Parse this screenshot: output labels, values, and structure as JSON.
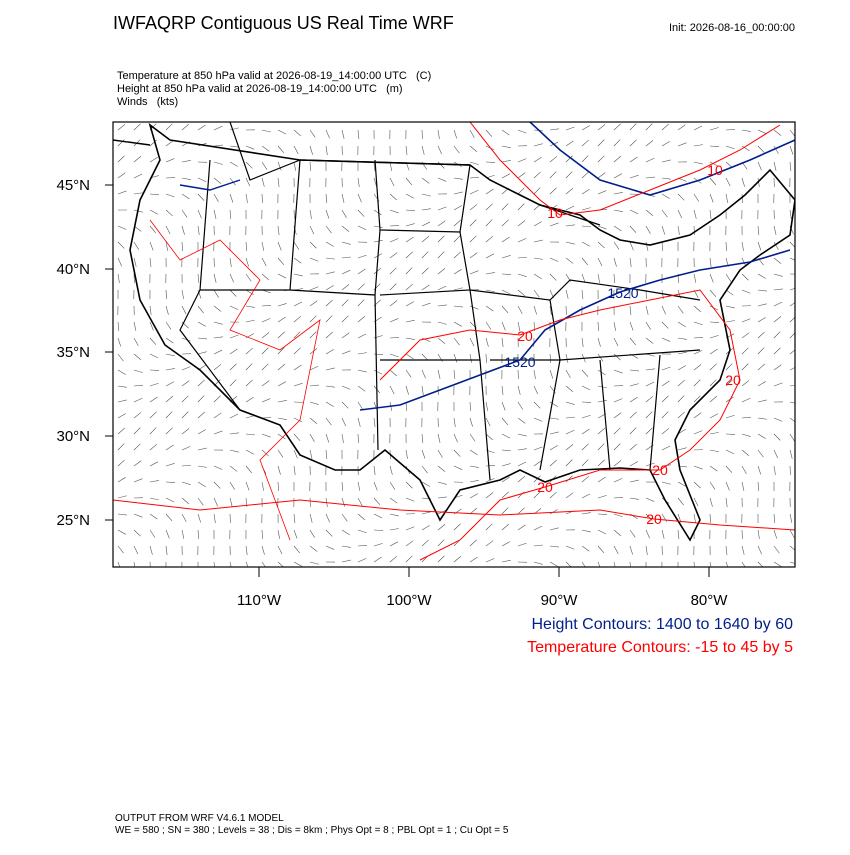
{
  "header": {
    "title": "IWFAQRP Contiguous US Real Time WRF",
    "init": "Init: 2026-08-16_00:00:00"
  },
  "fields": [
    "Temperature at 850 hPa valid at 2026-08-19_14:00:00 UTC   (C)",
    "Height at 850 hPa valid at 2026-08-19_14:00:00 UTC   (m)",
    "Winds   (kts)"
  ],
  "map": {
    "lat_labels": [
      "45°N",
      "40°N",
      "35°N",
      "30°N",
      "25°N"
    ],
    "lon_labels": [
      "110°W",
      "100°W",
      "90°W",
      "80°W"
    ],
    "contour_labels": [
      "10",
      "10",
      "20",
      "20",
      "20",
      "20",
      "20",
      "1520",
      "1520"
    ]
  },
  "legend": [
    "Height Contours: 1400 to 1640 by 60",
    "Temperature Contours: -15 to 45 by 5"
  ],
  "footer": [
    "OUTPUT FROM WRF V4.6.1 MODEL",
    "WE = 580 ; SN = 380 ; Levels = 38 ; Dis = 8km ; Phys Opt = 8 ; PBL Opt = 1 ; Cu Opt = 5"
  ]
}
